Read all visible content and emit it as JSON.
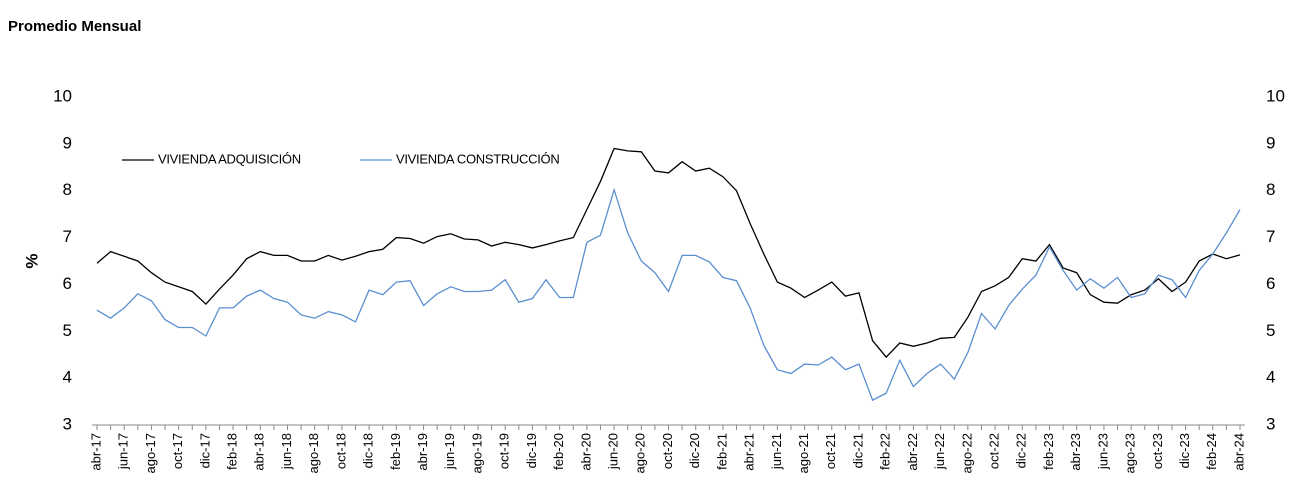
{
  "chart_data": {
    "type": "line",
    "subtitle": "Promedio Mensual",
    "y_label": "%",
    "categories": [
      "abr-17",
      null,
      "jun-17",
      null,
      "ago-17",
      null,
      "oct-17",
      null,
      "dic-17",
      null,
      "feb-18",
      null,
      "abr-18",
      null,
      "jun-18",
      null,
      "ago-18",
      null,
      "oct-18",
      null,
      "dic-18",
      null,
      "feb-19",
      null,
      "abr-19",
      null,
      "jun-19",
      null,
      "ago-19",
      null,
      "oct-19",
      null,
      "dic-19",
      null,
      "feb-20",
      null,
      "abr-20",
      null,
      "jun-20",
      null,
      "ago-20",
      null,
      "oct-20",
      null,
      "dic-20",
      null,
      "feb-21",
      null,
      "abr-21",
      null,
      "jun-21",
      null,
      "ago-21",
      null,
      "oct-21",
      null,
      "dic-21",
      null,
      "feb-22",
      null,
      "abr-22",
      null,
      "jun-22",
      null,
      "ago-22",
      null,
      "oct-22",
      null,
      "dic-22",
      null,
      "feb-23",
      null,
      "abr-23",
      null,
      "jun-23",
      null,
      "ago-23",
      null,
      "oct-23",
      null,
      "dic-23",
      null,
      "feb-24",
      null,
      "abr-24"
    ],
    "series": [
      {
        "name": "VIVIENDA ADQUISICIÓN",
        "color": "#000000",
        "values": [
          6.45,
          6.7,
          6.6,
          6.5,
          6.25,
          6.05,
          5.95,
          5.85,
          5.58,
          5.9,
          6.2,
          6.55,
          6.7,
          6.62,
          6.62,
          6.5,
          6.5,
          6.62,
          6.52,
          6.6,
          6.7,
          6.75,
          7.0,
          6.98,
          6.88,
          7.02,
          7.08,
          6.97,
          6.95,
          6.82,
          6.9,
          6.85,
          6.78,
          6.85,
          6.93,
          7.0,
          7.6,
          8.2,
          8.9,
          8.85,
          8.83,
          8.42,
          8.38,
          8.62,
          8.42,
          8.48,
          8.3,
          8.0,
          7.3,
          6.65,
          6.05,
          5.92,
          5.72,
          5.88,
          6.05,
          5.75,
          5.82,
          4.8,
          4.45,
          4.75,
          4.68,
          4.75,
          4.85,
          4.87,
          5.3,
          5.85,
          5.97,
          6.15,
          6.55,
          6.5,
          6.85,
          6.35,
          6.25,
          5.78,
          5.62,
          5.6,
          5.78,
          5.88,
          6.12,
          5.85,
          6.05,
          6.5,
          6.65,
          6.55,
          6.63
        ]
      },
      {
        "name": "VIVIENDA CONSTRUCCIÓN",
        "color": "#5b8fd0",
        "values": [
          5.45,
          5.28,
          5.5,
          5.8,
          5.65,
          5.25,
          5.08,
          5.08,
          4.9,
          5.5,
          5.5,
          5.75,
          5.88,
          5.7,
          5.62,
          5.35,
          5.28,
          5.42,
          5.35,
          5.2,
          5.88,
          5.78,
          6.05,
          6.08,
          5.55,
          5.8,
          5.95,
          5.85,
          5.85,
          5.88,
          6.1,
          5.62,
          5.7,
          6.1,
          5.72,
          5.72,
          6.9,
          7.05,
          8.02,
          7.1,
          6.5,
          6.25,
          5.85,
          6.62,
          6.62,
          6.48,
          6.15,
          6.08,
          5.5,
          4.7,
          4.18,
          4.1,
          4.3,
          4.28,
          4.45,
          4.18,
          4.3,
          3.53,
          3.68,
          4.38,
          3.82,
          4.1,
          4.3,
          3.98,
          4.55,
          5.38,
          5.05,
          5.55,
          5.9,
          6.2,
          6.8,
          6.3,
          5.88,
          6.12,
          5.92,
          6.15,
          5.72,
          5.8,
          6.2,
          6.1,
          5.72,
          6.3,
          6.65,
          7.1,
          7.6
        ]
      }
    ],
    "ylim": [
      3,
      10
    ],
    "yticks": [
      3,
      4,
      5,
      6,
      7,
      8,
      9,
      10
    ],
    "legend": "upper-left"
  }
}
